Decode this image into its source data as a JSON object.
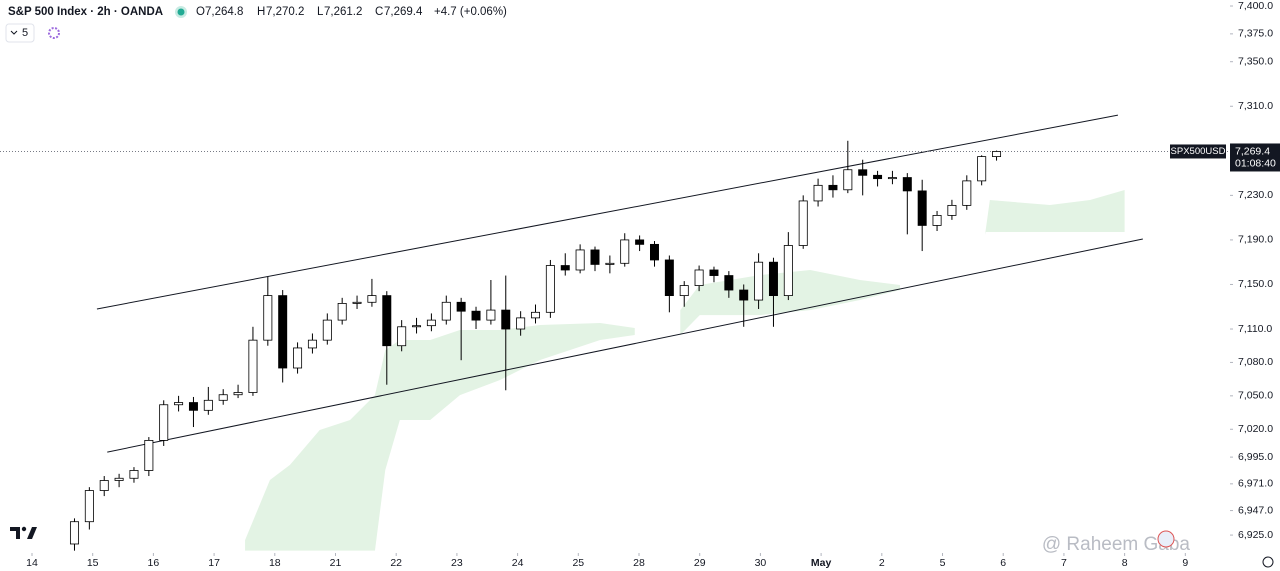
{
  "header": {
    "symbol": "S&P 500 Index · 2h · OANDA",
    "o_label": "O",
    "o": "7,264.8",
    "h_label": "H",
    "h": "7,270.2",
    "l_label": "L",
    "l": "7,261.2",
    "c_label": "C",
    "c": "7,269.4",
    "change": "+4.7 (+0.06%)",
    "indicator_count": "5"
  },
  "watermark": "@ Raheem Gaba",
  "chart_data": {
    "type": "candlestick",
    "xlim": [
      -0.527,
      19.736
    ],
    "ylim": [
      6910.7,
      7405.4
    ],
    "xticks": [
      {
        "value": 0,
        "label": "14"
      },
      {
        "value": 1,
        "label": "15"
      },
      {
        "value": 2,
        "label": "16"
      },
      {
        "value": 3,
        "label": "17"
      },
      {
        "value": 4,
        "label": "18"
      },
      {
        "value": 5,
        "label": "21"
      },
      {
        "value": 6,
        "label": "22"
      },
      {
        "value": 7,
        "label": "23"
      },
      {
        "value": 8,
        "label": "24"
      },
      {
        "value": 9,
        "label": "25"
      },
      {
        "value": 10,
        "label": "28"
      },
      {
        "value": 11,
        "label": "29"
      },
      {
        "value": 12,
        "label": "30"
      },
      {
        "value": 13,
        "label": "May"
      },
      {
        "value": 14,
        "label": "2"
      },
      {
        "value": 15,
        "label": "5"
      },
      {
        "value": 16,
        "label": "6"
      },
      {
        "value": 17,
        "label": "7"
      },
      {
        "value": 18,
        "label": "8"
      },
      {
        "value": 19,
        "label": "9"
      }
    ],
    "yticks": [
      {
        "value": 7400,
        "label": "7,400.0"
      },
      {
        "value": 7375,
        "label": "7,375.0"
      },
      {
        "value": 7350,
        "label": "7,350.0"
      },
      {
        "value": 7310,
        "label": "7,310.0"
      },
      {
        "value": 7230,
        "label": "7,230.0"
      },
      {
        "value": 7190,
        "label": "7,190.0"
      },
      {
        "value": 7150,
        "label": "7,150.0"
      },
      {
        "value": 7110,
        "label": "7,110.0"
      },
      {
        "value": 7080,
        "label": "7,080.0"
      },
      {
        "value": 7050,
        "label": "7,050.0"
      },
      {
        "value": 7020,
        "label": "7,020.0"
      },
      {
        "value": 6995,
        "label": "6,995.0"
      },
      {
        "value": 6971,
        "label": "6,971.0"
      },
      {
        "value": 6947,
        "label": "6,947.0"
      },
      {
        "value": 6925,
        "label": "6,925.0"
      }
    ],
    "up_color": "#ffffff",
    "down_color": "#000000",
    "wick_color": "#000000",
    "x": [
      0.7,
      0.945,
      1.19,
      1.435,
      1.68,
      1.925,
      2.17,
      2.415,
      2.66,
      2.905,
      3.15,
      3.395,
      3.64,
      3.885,
      4.13,
      4.375,
      4.62,
      4.865,
      5.11,
      5.355,
      5.6,
      5.845,
      6.09,
      6.335,
      6.58,
      6.825,
      7.07,
      7.315,
      7.56,
      7.805,
      8.05,
      8.295,
      8.54,
      8.785,
      9.03,
      9.275,
      9.52,
      9.765,
      10.01,
      10.255,
      10.5,
      10.745,
      10.99,
      11.235,
      11.48,
      11.725,
      11.97,
      12.215,
      12.46,
      12.705,
      12.95,
      13.195,
      13.44,
      13.685,
      13.93,
      14.175,
      14.42,
      14.665,
      14.91,
      15.155,
      15.4,
      15.645,
      15.89
    ],
    "open": [
      6917,
      6937,
      6965,
      6974,
      6976,
      6983,
      7010,
      7042,
      7044,
      7037,
      7046,
      7051,
      7053,
      7100,
      7140,
      7075,
      7093,
      7100,
      7118,
      7133,
      7134,
      7140,
      7095,
      7112,
      7113,
      7118,
      7134,
      7126,
      7118,
      7127,
      7110,
      7120,
      7125,
      7167,
      7163,
      7181,
      7168,
      7169,
      7190,
      7186,
      7172,
      7140,
      7149,
      7163,
      7158,
      7145,
      7136,
      7170,
      7140,
      7185,
      7225,
      7239,
      7235,
      7253,
      7248,
      7245,
      7246,
      7234,
      7203,
      7212,
      7221,
      7243,
      7264.8
    ],
    "high": [
      6940,
      6968,
      6978,
      6980,
      6986,
      7013,
      7046,
      7050,
      7049,
      7058,
      7056,
      7060,
      7112,
      7157,
      7145,
      7098,
      7106,
      7124,
      7138,
      7140,
      7155,
      7144,
      7118,
      7120,
      7124,
      7140,
      7138,
      7130,
      7154,
      7158,
      7126,
      7132,
      7172,
      7178,
      7186,
      7184,
      7176,
      7196,
      7194,
      7189,
      7176,
      7153,
      7167,
      7166,
      7162,
      7150,
      7178,
      7174,
      7197,
      7230,
      7245,
      7248,
      7279,
      7262,
      7252,
      7252,
      7250,
      7244,
      7216,
      7226,
      7248,
      7266,
      7270.2
    ],
    "low": [
      6911,
      6930,
      6960,
      6968,
      6972,
      6978,
      7005,
      7036,
      7022,
      7033,
      7042,
      7048,
      7050,
      7095,
      7062,
      7070,
      7088,
      7096,
      7114,
      7128,
      7130,
      7060,
      7090,
      7106,
      7108,
      7114,
      7082,
      7110,
      7114,
      7055,
      7104,
      7115,
      7120,
      7158,
      7160,
      7162,
      7160,
      7166,
      7180,
      7166,
      7125,
      7130,
      7144,
      7152,
      7138,
      7112,
      7128,
      7112,
      7136,
      7182,
      7220,
      7228,
      7232,
      7230,
      7238,
      7240,
      7195,
      7180,
      7198,
      7208,
      7217,
      7239,
      7261.2
    ],
    "close": [
      6937,
      6965,
      6974,
      6976,
      6983,
      7010,
      7042,
      7044,
      7037,
      7046,
      7051,
      7053,
      7100,
      7140,
      7075,
      7093,
      7100,
      7118,
      7133,
      7134,
      7140,
      7095,
      7112,
      7113,
      7118,
      7134,
      7126,
      7118,
      7127,
      7110,
      7120,
      7125,
      7167,
      7163,
      7181,
      7168,
      7169,
      7190,
      7186,
      7172,
      7140,
      7149,
      7163,
      7158,
      7145,
      7136,
      7170,
      7140,
      7185,
      7225,
      7239,
      7235,
      7253,
      7248,
      7245,
      7246,
      7234,
      7203,
      7212,
      7221,
      7243,
      7264.8,
      7269.4
    ],
    "cloud": {
      "color": "#e3f3e4",
      "x": [
        3.51,
        3.92,
        4.25,
        4.74,
        5.24,
        5.65,
        5.82,
        6.06,
        6.56,
        7.05,
        7.71,
        8.37,
        9.36,
        9.93,
        null,
        10.68,
        11.0,
        12.0,
        12.82,
        13.64,
        14.3,
        null,
        15.7,
        15.78,
        16.77,
        17.43,
        18.0
      ],
      "top": [
        6920.5,
        6974.4,
        6988,
        7019.3,
        7028.3,
        7050.7,
        7091.1,
        7100.1,
        7100.1,
        7109.1,
        7109.1,
        7113.6,
        7115.4,
        7110.9,
        null,
        7127,
        7149.5,
        7158.5,
        7163,
        7154,
        7149.5,
        null,
        7194.4,
        7225.8,
        7221.3,
        7225.8,
        7234.8
      ],
      "bottom": [
        6911,
        6911,
        6911,
        6911,
        6911,
        6911,
        6983.4,
        7028.3,
        7028.3,
        7050.7,
        7064.2,
        7082.2,
        7100.1,
        7104.6,
        null,
        7104.6,
        7122.5,
        7122.5,
        7127,
        7136,
        7145,
        null,
        7197.1,
        7197.1,
        7197.1,
        7197.1,
        7197.1
      ]
    },
    "trendlines": [
      {
        "x": [
          1.07,
          17.89
        ],
        "y": [
          7128,
          7302
        ]
      },
      {
        "x": [
          1.24,
          18.3
        ],
        "y": [
          6999.5,
          7190.8
        ]
      }
    ],
    "last_price": {
      "value": 7269.4,
      "label": "7,269.4"
    },
    "price_symbol": "SPX500USD",
    "countdown": "01:08:40"
  }
}
